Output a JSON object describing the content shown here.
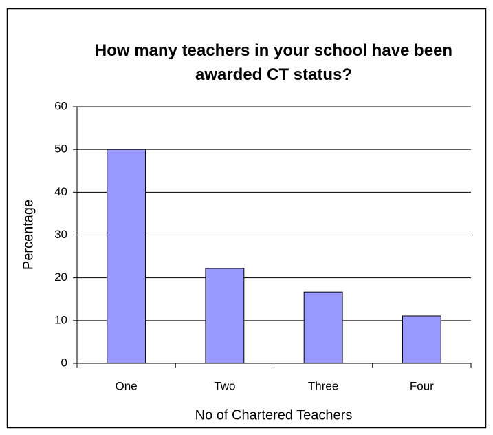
{
  "chart_data": {
    "type": "bar",
    "title": "How many teachers in your school have been awarded CT status?",
    "x_label": "No of Chartered Teachers",
    "y_label": "Percentage",
    "categories": [
      "One",
      "Two",
      "Three",
      "Four"
    ],
    "values": [
      50,
      22.2,
      16.7,
      11.1
    ],
    "color": "#9999ff",
    "ylim": [
      0,
      60
    ],
    "yticks": [
      0,
      10,
      20,
      30,
      40,
      50,
      60
    ],
    "grid": true
  }
}
